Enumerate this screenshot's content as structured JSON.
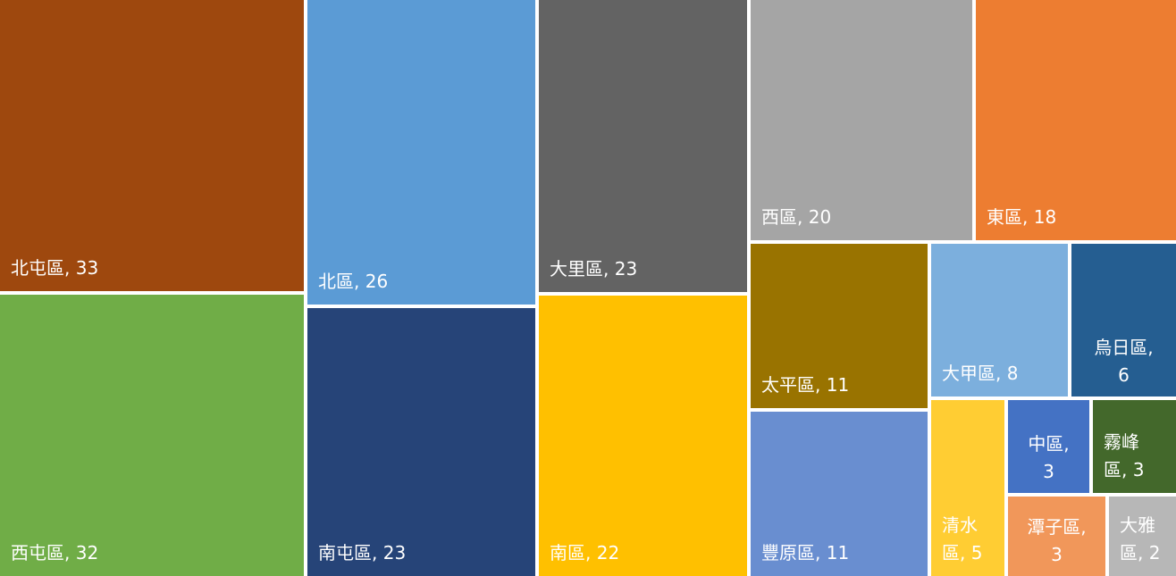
{
  "chart_data": {
    "type": "treemap",
    "items": [
      {
        "name": "北屯區",
        "value": 33,
        "label": "北屯區, 33",
        "lines": [
          "北屯區, 33"
        ],
        "color": "#9E480E"
      },
      {
        "name": "西屯區",
        "value": 32,
        "label": "西屯區, 32",
        "lines": [
          "西屯區, 32"
        ],
        "color": "#70AD47"
      },
      {
        "name": "北區",
        "value": 26,
        "label": "北區, 26",
        "lines": [
          "北區, 26"
        ],
        "color": "#5B9BD5"
      },
      {
        "name": "南屯區",
        "value": 23,
        "label": "南屯區, 23",
        "lines": [
          "南屯區, 23"
        ],
        "color": "#264478"
      },
      {
        "name": "大里區",
        "value": 23,
        "label": "大里區, 23",
        "lines": [
          "大里區, 23"
        ],
        "color": "#636363"
      },
      {
        "name": "南區",
        "value": 22,
        "label": "南區, 22",
        "lines": [
          "南區, 22"
        ],
        "color": "#FFC000"
      },
      {
        "name": "西區",
        "value": 20,
        "label": "西區, 20",
        "lines": [
          "西區, 20"
        ],
        "color": "#A5A5A5"
      },
      {
        "name": "東區",
        "value": 18,
        "label": "東區, 18",
        "lines": [
          "東區, 18"
        ],
        "color": "#ED7D31"
      },
      {
        "name": "太平區",
        "value": 11,
        "label": "太平區, 11",
        "lines": [
          "太平區, 11"
        ],
        "color": "#997300"
      },
      {
        "name": "豐原區",
        "value": 11,
        "label": "豐原區, 11",
        "lines": [
          "豐原區, 11"
        ],
        "color": "#698ED0"
      },
      {
        "name": "大甲區",
        "value": 8,
        "label": "大甲區, 8",
        "lines": [
          "大甲區, 8"
        ],
        "color": "#7CAFDD"
      },
      {
        "name": "烏日區",
        "value": 6,
        "label": "烏日區, 6",
        "lines": [
          "烏日區,",
          "6"
        ],
        "color": "#255E91"
      },
      {
        "name": "清水區",
        "value": 5,
        "label": "清水區, 5",
        "lines": [
          "清水",
          "區, 5"
        ],
        "color": "#FFCD33"
      },
      {
        "name": "中區",
        "value": 3,
        "label": "中區, 3",
        "lines": [
          "中區,",
          "3"
        ],
        "color": "#4472C4"
      },
      {
        "name": "霧峰區",
        "value": 3,
        "label": "霧峰區, 3",
        "lines": [
          "霧峰",
          "區, 3"
        ],
        "color": "#43682B"
      },
      {
        "name": "潭子區",
        "value": 3,
        "label": "潭子區, 3",
        "lines": [
          "潭子區,",
          "3"
        ],
        "color": "#F1975A"
      },
      {
        "name": "大雅區",
        "value": 2,
        "label": "大雅區, 2",
        "lines": [
          "大雅",
          "區, 2"
        ],
        "color": "#B7B7B7"
      }
    ]
  }
}
